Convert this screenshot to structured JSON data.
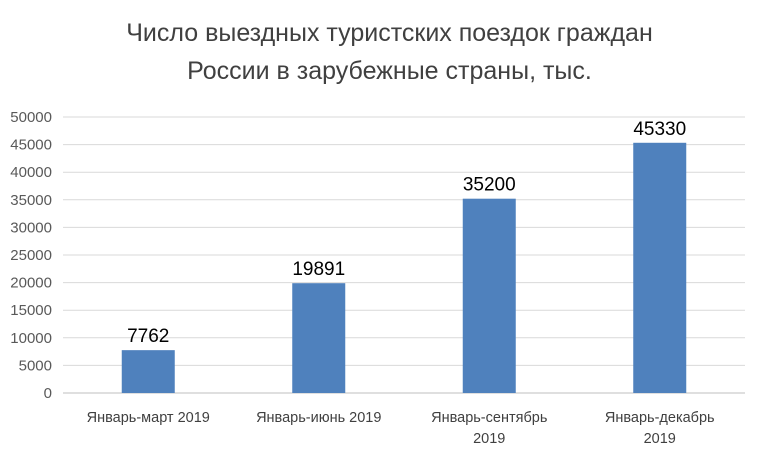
{
  "colors": {
    "bar": "#4f81bd",
    "grid": "#d9d9d9",
    "axis": "#bfbfbf"
  },
  "chart_data": {
    "type": "bar",
    "title_lines": [
      "Число выездных туристских поездок граждан",
      "России в зарубежные страны, тыс."
    ],
    "categories": [
      [
        "Январь-март 2019"
      ],
      [
        "Январь-июнь 2019"
      ],
      [
        "Январь-сентябрь",
        "2019"
      ],
      [
        "Январь-декабрь",
        "2019"
      ]
    ],
    "values": [
      7762,
      19891,
      35200,
      45330
    ],
    "data_labels": [
      "7762",
      "19891",
      "35200",
      "45330"
    ],
    "ylim": [
      0,
      50000
    ],
    "yticks": [
      "0",
      "5000",
      "10000",
      "15000",
      "20000",
      "25000",
      "30000",
      "35000",
      "40000",
      "45000",
      "50000"
    ],
    "grid": true,
    "legend": "none"
  }
}
